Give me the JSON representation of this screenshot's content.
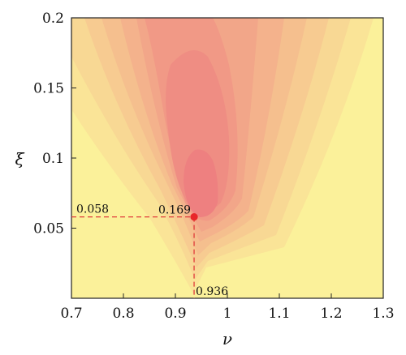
{
  "chart_data": {
    "type": "heatmap",
    "title": "",
    "xlabel": "ν",
    "ylabel": "ξ",
    "xlim": [
      0.7,
      1.3
    ],
    "ylim": [
      0.0,
      0.2
    ],
    "x_ticks": [
      "0.7",
      "0.8",
      "0.9",
      "1",
      "1.1",
      "1.2",
      "1.3"
    ],
    "x_tick_values": [
      0.7,
      0.8,
      0.9,
      1.0,
      1.1,
      1.2,
      1.3
    ],
    "y_ticks": [
      "0.05",
      "0.1",
      "0.15",
      "0.2"
    ],
    "y_tick_values": [
      0.05,
      0.1,
      0.15,
      0.2
    ],
    "colors": {
      "low": "#fbf19a",
      "high": "#ee8080",
      "marker": "#e8262a",
      "guide": "#e03b3b"
    },
    "optimum": {
      "x": 0.936,
      "y": 0.058,
      "value": 0.169,
      "x_label": "0.936",
      "y_label": "0.058",
      "value_label": "0.169"
    }
  }
}
